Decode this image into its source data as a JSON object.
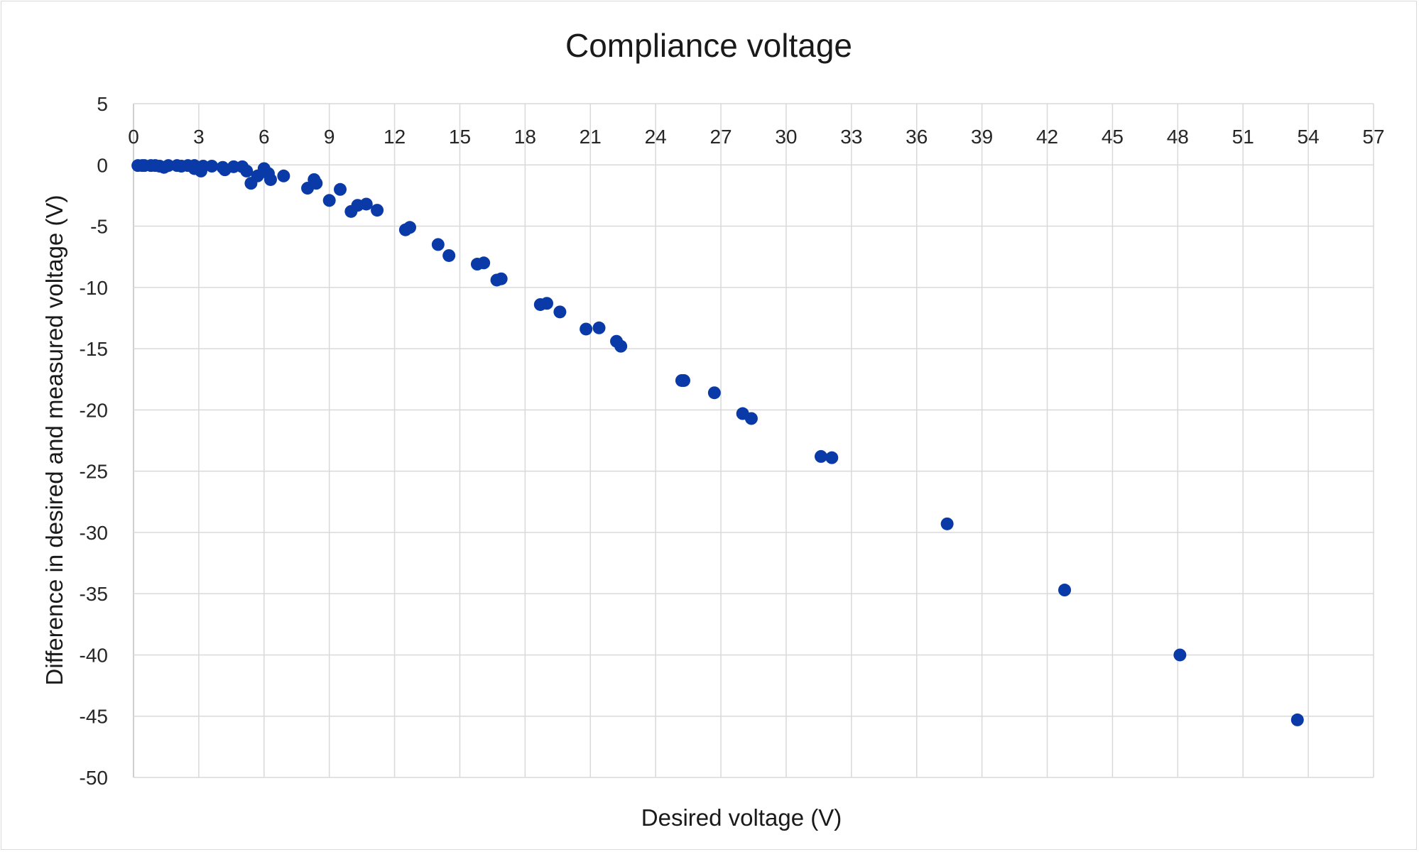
{
  "chart_data": {
    "type": "scatter",
    "title": "Compliance voltage",
    "xlabel": "Desired voltage (V)",
    "ylabel": "Difference in desired and measured voltage (V)",
    "xlim": [
      0,
      57
    ],
    "ylim": [
      -50,
      5
    ],
    "x_ticks": [
      "0",
      "3",
      "6",
      "9",
      "12",
      "15",
      "18",
      "21",
      "24",
      "27",
      "30",
      "33",
      "36",
      "39",
      "42",
      "45",
      "48",
      "51",
      "54",
      "57"
    ],
    "y_ticks": [
      "5",
      "0",
      "-5",
      "-10",
      "-15",
      "-20",
      "-25",
      "-30",
      "-35",
      "-40",
      "-45",
      "-50"
    ],
    "x_axis_position": "top",
    "grid": true,
    "legend": "none",
    "marker_color": "#0a3aa8",
    "series": [
      {
        "points": [
          [
            0.2,
            -0.05
          ],
          [
            0.4,
            -0.05
          ],
          [
            0.5,
            -0.05
          ],
          [
            0.8,
            -0.05
          ],
          [
            1.0,
            -0.05
          ],
          [
            1.2,
            -0.1
          ],
          [
            1.4,
            -0.2
          ],
          [
            1.6,
            -0.05
          ],
          [
            2.0,
            -0.05
          ],
          [
            2.2,
            -0.1
          ],
          [
            2.5,
            -0.05
          ],
          [
            2.8,
            -0.05
          ],
          [
            2.8,
            -0.3
          ],
          [
            3.1,
            -0.5
          ],
          [
            3.2,
            -0.1
          ],
          [
            3.6,
            -0.1
          ],
          [
            4.1,
            -0.2
          ],
          [
            4.2,
            -0.4
          ],
          [
            4.6,
            -0.15
          ],
          [
            5.0,
            -0.15
          ],
          [
            5.2,
            -0.5
          ],
          [
            5.4,
            -1.5
          ],
          [
            5.7,
            -0.9
          ],
          [
            6.0,
            -0.3
          ],
          [
            6.2,
            -0.7
          ],
          [
            6.3,
            -1.2
          ],
          [
            6.9,
            -0.9
          ],
          [
            8.0,
            -1.9
          ],
          [
            8.3,
            -1.2
          ],
          [
            8.4,
            -1.5
          ],
          [
            9.0,
            -2.9
          ],
          [
            9.5,
            -2.0
          ],
          [
            10.0,
            -3.8
          ],
          [
            10.3,
            -3.3
          ],
          [
            10.7,
            -3.2
          ],
          [
            11.2,
            -3.7
          ],
          [
            12.5,
            -5.3
          ],
          [
            12.7,
            -5.1
          ],
          [
            14.0,
            -6.5
          ],
          [
            14.5,
            -7.4
          ],
          [
            15.8,
            -8.1
          ],
          [
            16.1,
            -8.0
          ],
          [
            16.7,
            -9.4
          ],
          [
            16.9,
            -9.3
          ],
          [
            18.7,
            -11.4
          ],
          [
            19.0,
            -11.3
          ],
          [
            19.6,
            -12.0
          ],
          [
            20.8,
            -13.4
          ],
          [
            21.4,
            -13.3
          ],
          [
            22.2,
            -14.4
          ],
          [
            22.4,
            -14.8
          ],
          [
            25.2,
            -17.6
          ],
          [
            25.3,
            -17.6
          ],
          [
            26.7,
            -18.6
          ],
          [
            28.0,
            -20.3
          ],
          [
            28.4,
            -20.7
          ],
          [
            31.6,
            -23.8
          ],
          [
            32.1,
            -23.9
          ],
          [
            37.4,
            -29.3
          ],
          [
            42.8,
            -34.7
          ],
          [
            48.1,
            -40.0
          ],
          [
            53.5,
            -45.3
          ]
        ]
      }
    ]
  }
}
